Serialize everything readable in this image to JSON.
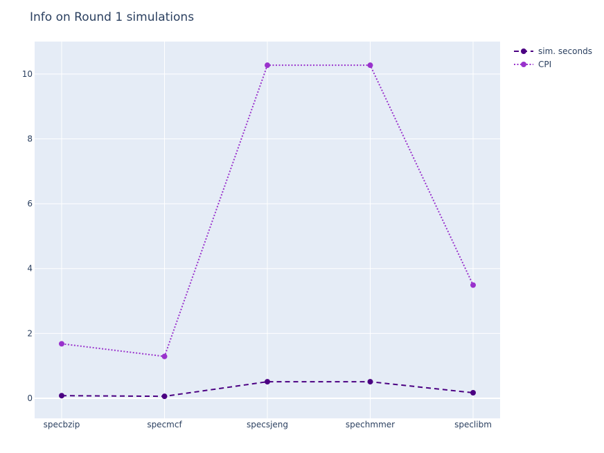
{
  "chart_data": {
    "type": "line",
    "title": "Info on Round 1 simulations",
    "xlabel": "",
    "ylabel": "",
    "categories": [
      "specbzip",
      "specmcf",
      "specsjeng",
      "spechmmer",
      "speclibm"
    ],
    "ylim": [
      -0.62,
      11.0
    ],
    "yticks": [
      0,
      2,
      4,
      6,
      8,
      10
    ],
    "grid": true,
    "legend_position": "top-right",
    "plot_bg": "#e5ecf6",
    "series": [
      {
        "name": "sim. seconds",
        "values": [
          0.08,
          0.06,
          0.51,
          0.51,
          0.17
        ],
        "color": "#4b0082",
        "dash": "dashed",
        "marker": "circle"
      },
      {
        "name": "CPI",
        "values": [
          1.68,
          1.29,
          10.27,
          10.27,
          3.49
        ],
        "color": "#9932cc",
        "dash": "dotted",
        "marker": "circle"
      }
    ]
  }
}
